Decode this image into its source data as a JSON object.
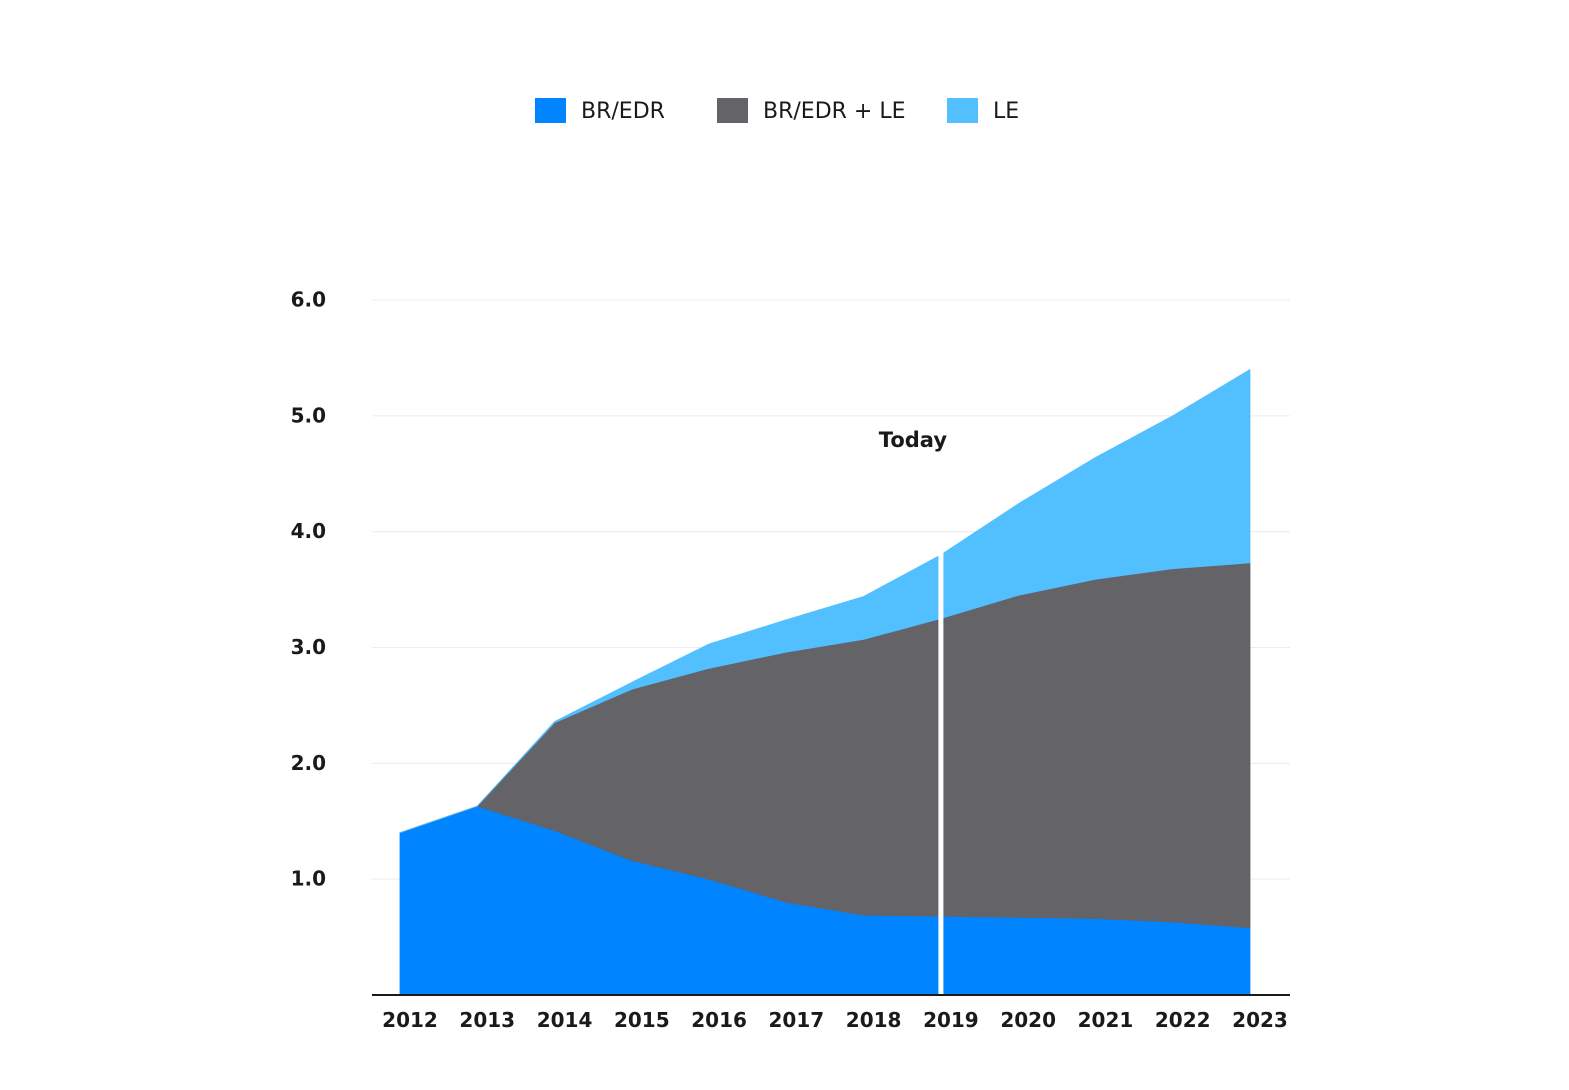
{
  "chart_data": {
    "type": "area",
    "stacked": true,
    "title": "",
    "xlabel": "",
    "ylabel": "",
    "x": [
      "2012",
      "2013",
      "2014",
      "2015",
      "2016",
      "2017",
      "2018",
      "2019",
      "2020",
      "2021",
      "2022",
      "2023"
    ],
    "ylim": [
      0,
      6.0
    ],
    "yticks": [
      "1.0",
      "2.0",
      "3.0",
      "4.0",
      "5.0",
      "6.0"
    ],
    "grid": true,
    "legend_position": "top-center",
    "series": [
      {
        "name": "BR/EDR",
        "color": "#0084ff",
        "values": [
          1.4,
          1.63,
          1.42,
          1.16,
          1.0,
          0.8,
          0.69,
          0.68,
          0.67,
          0.66,
          0.63,
          0.58
        ]
      },
      {
        "name": "BR/EDR + LE",
        "color": "#636368",
        "values": [
          0.0,
          0.0,
          0.93,
          1.48,
          1.82,
          2.16,
          2.38,
          2.57,
          2.78,
          2.93,
          3.05,
          3.15
        ]
      },
      {
        "name": "LE",
        "color": "#52bfff",
        "values": [
          0.0,
          0.0,
          0.01,
          0.06,
          0.21,
          0.28,
          0.37,
          0.55,
          0.79,
          1.05,
          1.32,
          1.67
        ]
      }
    ],
    "annotations": [
      {
        "text": "Today",
        "x": "2019"
      }
    ]
  }
}
